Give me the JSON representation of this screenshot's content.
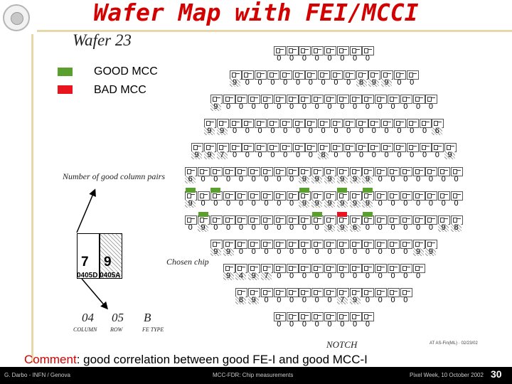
{
  "slide": {
    "title": "Wafer Map with FEI/MCCI",
    "wafer_label": "Wafer 23",
    "legend": [
      {
        "label": "GOOD MCC",
        "color": "#5aa02c"
      },
      {
        "label": "BAD MCC",
        "color": "#e8141e"
      }
    ],
    "annotation_columns": "Number of good column pairs",
    "annotation_chosen": "Chosen chip",
    "inset": {
      "left_value": "7",
      "right_value": "9",
      "left_code": "0405D",
      "right_code": "0405A"
    },
    "code_parts": {
      "column": "04",
      "row": "05",
      "fe_type": "B",
      "column_label": "COLUMN",
      "row_label": "ROW",
      "fe_type_label": "FE TYPE"
    },
    "notch_label": "NOTCH",
    "map_ref": "AT AS-Fin(ML) · 02/23/02",
    "comment_prefix": "Comment",
    "comment_text": ": good correlation between good FE-I and good MCC-I",
    "footer": {
      "author": "G. Darbo - INFN / Genova",
      "topic": "MCC-FDR: Chip measurements",
      "event": "Pixel Week, 10 October 2002",
      "page": "30"
    }
  },
  "wafer_rows": [
    [
      "0",
      "0",
      "0",
      "0",
      "0",
      "0",
      "0",
      "0"
    ],
    [
      "9",
      "0",
      "0",
      "0",
      "0",
      "0",
      "0",
      "0",
      "0",
      "0",
      "8",
      "9",
      "9",
      "0",
      "0"
    ],
    [
      "9",
      "0",
      "0",
      "0",
      "0",
      "0",
      "0",
      "0",
      "0",
      "0",
      "0",
      "0",
      "0",
      "0",
      "0",
      "0",
      "0",
      "0"
    ],
    [
      "9",
      "9",
      "0",
      "0",
      "0",
      "0",
      "0",
      "0",
      "0",
      "0",
      "0",
      "0",
      "0",
      "0",
      "0",
      "0",
      "0",
      "0",
      "6"
    ],
    [
      "9",
      "9",
      "7",
      "0",
      "0",
      "0",
      "0",
      "0",
      "0",
      "0",
      "8",
      "0",
      "0",
      "0",
      "0",
      "0",
      "0",
      "0",
      "0",
      "0",
      "9"
    ],
    [
      "6",
      "0",
      "0",
      "0",
      "0",
      "0",
      "0",
      "0",
      "0",
      "9",
      "9",
      "9",
      "9",
      "9",
      "9",
      "0",
      "0",
      "0",
      "0",
      "0",
      "0",
      "0"
    ],
    [
      "9",
      "0",
      "0",
      "0",
      "0",
      "0",
      "0",
      "0",
      "0",
      "9",
      "9",
      "9",
      "9",
      "9",
      "9",
      "0",
      "0",
      "0",
      "0",
      "0",
      "0",
      "0"
    ],
    [
      "0",
      "9",
      "0",
      "0",
      "0",
      "0",
      "0",
      "0",
      "0",
      "0",
      "0",
      "9",
      "9",
      "6",
      "0",
      "0",
      "0",
      "0",
      "0",
      "0",
      "9",
      "8"
    ],
    [
      "9",
      "9",
      "0",
      "0",
      "0",
      "0",
      "0",
      "0",
      "0",
      "0",
      "0",
      "0",
      "0",
      "0",
      "0",
      "0",
      "9",
      "9"
    ],
    [
      "9",
      "4",
      "9",
      "7",
      "0",
      "0",
      "0",
      "0",
      "0",
      "0",
      "0",
      "0",
      "0",
      "0",
      "0",
      "0"
    ],
    [
      "8",
      "9",
      "0",
      "0",
      "0",
      "0",
      "0",
      "0",
      "7",
      "9",
      "0",
      "0",
      "0",
      "0"
    ],
    [
      "0",
      "0",
      "0",
      "0",
      "0",
      "0",
      "0",
      "0"
    ]
  ]
}
